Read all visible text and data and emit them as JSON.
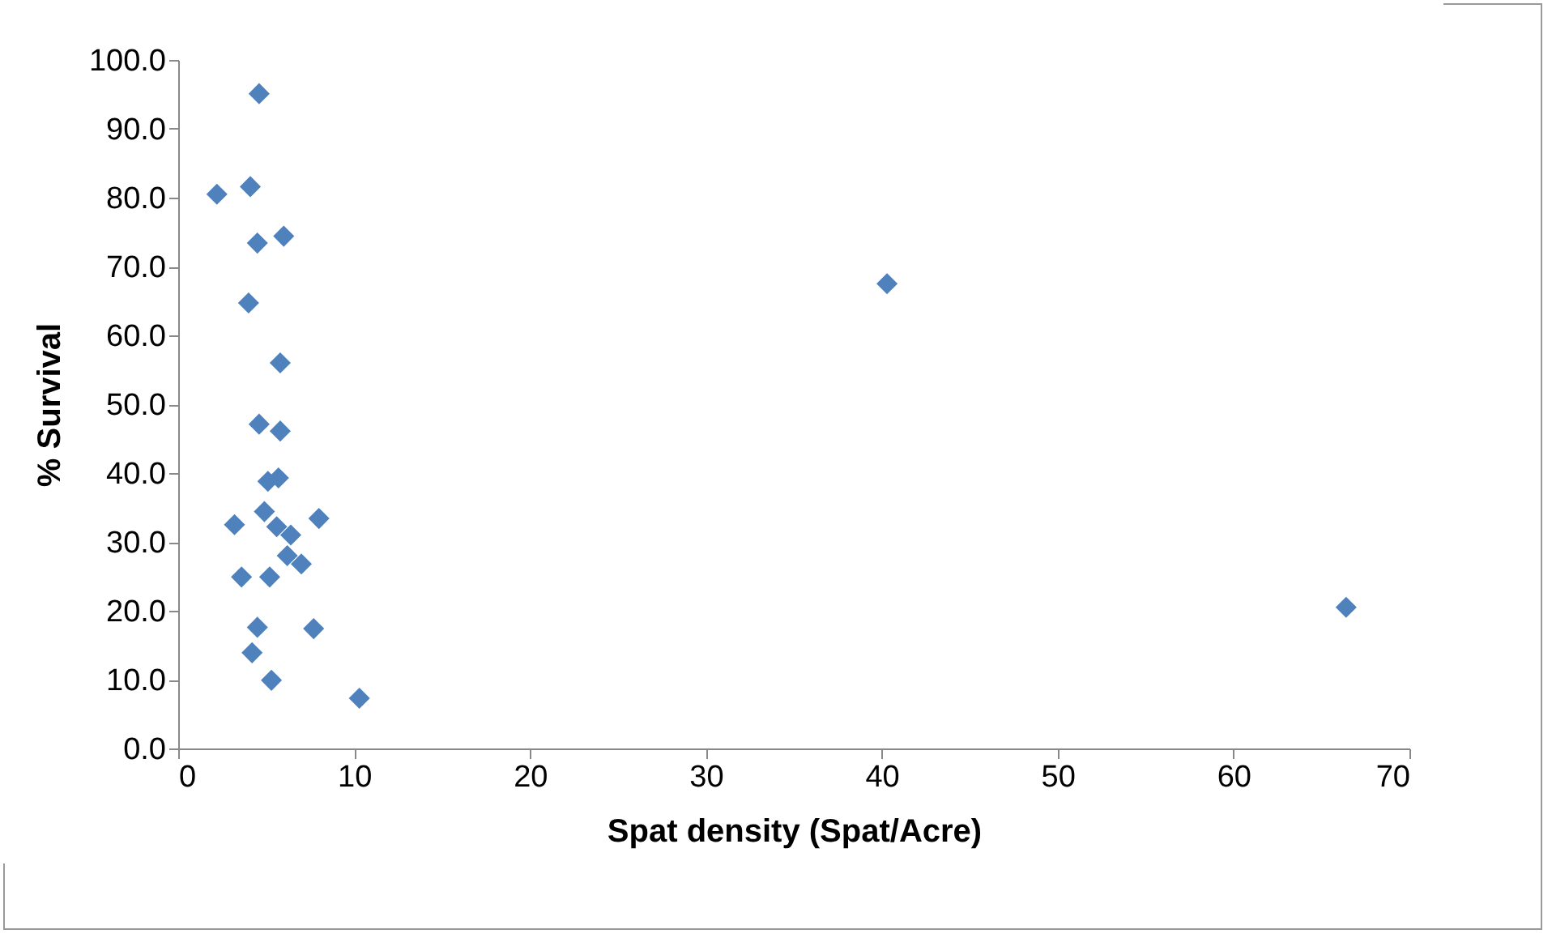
{
  "chart_data": {
    "type": "scatter",
    "xlabel": "Spat density (Spat/Acre)",
    "ylabel": "% Survival",
    "marker": "diamond",
    "xlim": [
      0,
      70
    ],
    "xticks": [
      0,
      10,
      20,
      30,
      40,
      50,
      60,
      70
    ],
    "ylim": [
      0,
      100
    ],
    "yticks": [
      {
        "value": 0,
        "label": "0.0"
      },
      {
        "value": 10,
        "label": "10.0"
      },
      {
        "value": 20,
        "label": "20.0"
      },
      {
        "value": 30,
        "label": "30.0"
      },
      {
        "value": 40,
        "label": "40.0"
      },
      {
        "value": 50,
        "label": "50.0"
      },
      {
        "value": 60,
        "label": "60.0"
      },
      {
        "value": 70,
        "label": "70.0"
      },
      {
        "value": 80,
        "label": "80.0"
      },
      {
        "value": 90,
        "label": "90.0"
      },
      {
        "value": 100,
        "label": "100.0"
      }
    ],
    "series": [
      {
        "color": "#4f81bd",
        "x": [
          4.6,
          2.2,
          4.1,
          4.5,
          6.0,
          4.0,
          40.3,
          5.8,
          4.6,
          5.8,
          5.1,
          5.7,
          3.2,
          4.9,
          8.0,
          5.6,
          6.4,
          6.2,
          7.0,
          3.6,
          5.2,
          4.5,
          7.7,
          4.2,
          5.3,
          10.3,
          66.4
        ],
        "values": [
          95.1,
          80.5,
          81.6,
          73.4,
          74.4,
          64.7,
          67.5,
          56.0,
          47.1,
          46.1,
          38.8,
          39.3,
          32.5,
          34.4,
          33.4,
          32.2,
          31.0,
          28.0,
          26.8,
          24.9,
          24.9,
          17.6,
          17.4,
          13.9,
          9.9,
          7.3,
          20.5
        ]
      }
    ]
  }
}
